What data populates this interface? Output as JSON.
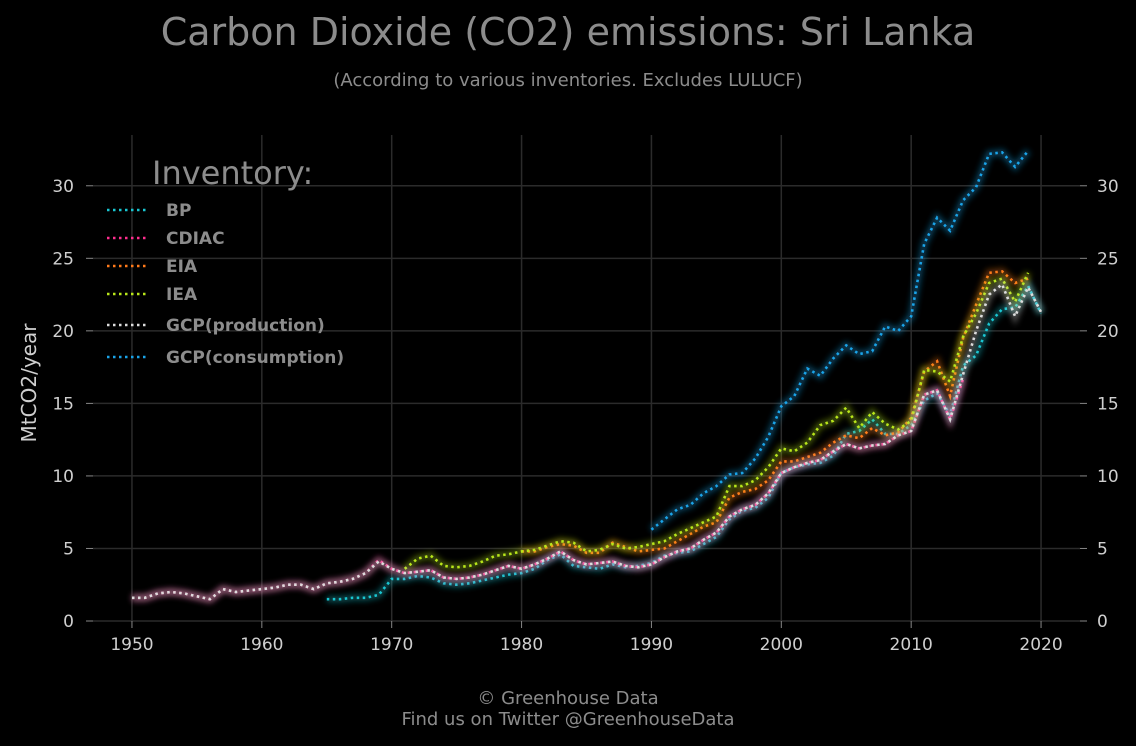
{
  "chart_data": {
    "type": "line",
    "title": "Carbon Dioxide (CO2) emissions: Sri Lanka",
    "subtitle": "(According to various inventories. Excludes LULUCF)",
    "xlabel": "",
    "ylabel": "MtCO2/year",
    "xlim": [
      1947,
      2023
    ],
    "ylim": [
      0,
      33.5
    ],
    "xticks": [
      1950,
      1960,
      1970,
      1980,
      1990,
      2000,
      2010,
      2020
    ],
    "yticks": [
      0,
      5,
      10,
      15,
      20,
      25,
      30
    ],
    "grid": true,
    "legend_title": "Inventory:",
    "legend_position": "top-left",
    "series": [
      {
        "name": "BP",
        "color": "#19c6d2",
        "x": [
          1965,
          1966,
          1967,
          1968,
          1969,
          1970,
          1971,
          1972,
          1973,
          1974,
          1975,
          1976,
          1977,
          1978,
          1979,
          1980,
          1981,
          1982,
          1983,
          1984,
          1985,
          1986,
          1987,
          1988,
          1989,
          1990,
          1991,
          1992,
          1993,
          1994,
          1995,
          1996,
          1997,
          1998,
          1999,
          2000,
          2001,
          2002,
          2003,
          2004,
          2005,
          2006,
          2007,
          2008,
          2009,
          2010,
          2011,
          2012,
          2013,
          2014,
          2015,
          2016,
          2017,
          2018,
          2019,
          2020
        ],
        "y": [
          1.5,
          1.5,
          1.6,
          1.6,
          1.8,
          2.9,
          2.9,
          3.1,
          3.0,
          2.6,
          2.5,
          2.6,
          2.8,
          3.0,
          3.2,
          3.3,
          3.6,
          4.2,
          4.6,
          3.8,
          3.7,
          3.6,
          3.9,
          3.7,
          3.8,
          4.0,
          4.5,
          4.7,
          4.8,
          5.3,
          5.8,
          7.0,
          7.6,
          7.8,
          8.5,
          10.2,
          10.6,
          10.8,
          10.9,
          11.4,
          12.9,
          13.1,
          13.9,
          12.9,
          12.9,
          13.5,
          15.2,
          15.7,
          14.2,
          17.6,
          18.3,
          20.5,
          21.5,
          21.6,
          23.1,
          21.2
        ]
      },
      {
        "name": "CDIAC",
        "color": "#ff2e8f",
        "x": [
          1950,
          1951,
          1952,
          1953,
          1954,
          1955,
          1956,
          1957,
          1958,
          1959,
          1960,
          1961,
          1962,
          1963,
          1964,
          1965,
          1966,
          1967,
          1968,
          1969,
          1970,
          1971,
          1972,
          1973,
          1974,
          1975,
          1976,
          1977,
          1978,
          1979,
          1980,
          1981,
          1982,
          1983,
          1984,
          1985,
          1986,
          1987,
          1988,
          1989,
          1990,
          1991,
          1992,
          1993,
          1994,
          1995,
          1996,
          1997,
          1998,
          1999,
          2000,
          2001,
          2002,
          2003,
          2004,
          2005,
          2006,
          2007,
          2008,
          2009,
          2010,
          2011,
          2012,
          2013,
          2014
        ],
        "y": [
          1.6,
          1.6,
          1.9,
          2.0,
          1.9,
          1.7,
          1.5,
          2.2,
          2.0,
          2.1,
          2.2,
          2.3,
          2.5,
          2.5,
          2.2,
          2.6,
          2.7,
          2.9,
          3.3,
          4.2,
          3.6,
          3.3,
          3.4,
          3.5,
          3.0,
          2.9,
          3.0,
          3.2,
          3.5,
          3.8,
          3.6,
          3.9,
          4.3,
          4.8,
          4.2,
          3.9,
          4.0,
          4.1,
          3.8,
          3.7,
          3.9,
          4.4,
          4.8,
          5.0,
          5.6,
          6.1,
          7.2,
          7.7,
          8.0,
          8.8,
          10.2,
          10.6,
          10.9,
          11.1,
          11.7,
          12.2,
          11.9,
          12.1,
          12.2,
          12.8,
          13.1,
          15.6,
          15.9,
          13.9,
          16.7
        ]
      },
      {
        "name": "EIA",
        "color": "#ff7a1a",
        "x": [
          1980,
          1981,
          1982,
          1983,
          1984,
          1985,
          1986,
          1987,
          1988,
          1989,
          1990,
          1991,
          1992,
          1993,
          1994,
          1995,
          1996,
          1997,
          1998,
          1999,
          2000,
          2001,
          2002,
          2003,
          2004,
          2005,
          2006,
          2007,
          2008,
          2009,
          2010,
          2011,
          2012,
          2013,
          2014,
          2015,
          2016,
          2017,
          2018,
          2019
        ],
        "y": [
          4.8,
          4.8,
          5.1,
          5.3,
          5.2,
          4.7,
          4.7,
          5.4,
          5.1,
          4.8,
          4.9,
          5.0,
          5.5,
          6.0,
          6.5,
          6.8,
          8.5,
          8.9,
          9.1,
          9.7,
          11.0,
          11.0,
          11.3,
          11.6,
          12.3,
          12.8,
          12.6,
          13.3,
          12.8,
          13.0,
          14.0,
          17.2,
          17.9,
          15.5,
          19.5,
          21.8,
          24.0,
          24.1,
          23.3,
          23.6
        ]
      },
      {
        "name": "IEA",
        "color": "#b8e61a",
        "x": [
          1971,
          1972,
          1973,
          1974,
          1975,
          1976,
          1977,
          1978,
          1979,
          1980,
          1981,
          1982,
          1983,
          1984,
          1985,
          1986,
          1987,
          1988,
          1989,
          1990,
          1991,
          1992,
          1993,
          1994,
          1995,
          1996,
          1997,
          1998,
          1999,
          2000,
          2001,
          2002,
          2003,
          2004,
          2005,
          2006,
          2007,
          2008,
          2009,
          2010,
          2011,
          2012,
          2013,
          2014,
          2015,
          2016,
          2017,
          2018,
          2019
        ],
        "y": [
          3.6,
          4.3,
          4.5,
          3.8,
          3.7,
          3.8,
          4.1,
          4.5,
          4.6,
          4.8,
          4.9,
          5.2,
          5.5,
          5.4,
          4.8,
          4.9,
          5.3,
          5.0,
          5.1,
          5.3,
          5.5,
          6.0,
          6.4,
          6.8,
          7.2,
          9.3,
          9.3,
          9.7,
          10.6,
          11.9,
          11.7,
          12.3,
          13.5,
          13.8,
          14.7,
          13.3,
          14.4,
          13.6,
          13.2,
          13.8,
          17.3,
          17.2,
          16.5,
          19.6,
          21.2,
          23.3,
          23.6,
          22.0,
          24.0
        ]
      },
      {
        "name": "GCP(production)",
        "color": "#dcdcdc",
        "x": [
          1950,
          1951,
          1952,
          1953,
          1954,
          1955,
          1956,
          1957,
          1958,
          1959,
          1960,
          1961,
          1962,
          1963,
          1964,
          1965,
          1966,
          1967,
          1968,
          1969,
          1970,
          1971,
          1972,
          1973,
          1974,
          1975,
          1976,
          1977,
          1978,
          1979,
          1980,
          1981,
          1982,
          1983,
          1984,
          1985,
          1986,
          1987,
          1988,
          1989,
          1990,
          1991,
          1992,
          1993,
          1994,
          1995,
          1996,
          1997,
          1998,
          1999,
          2000,
          2001,
          2002,
          2003,
          2004,
          2005,
          2006,
          2007,
          2008,
          2009,
          2010,
          2011,
          2012,
          2013,
          2014,
          2015,
          2016,
          2017,
          2018,
          2019,
          2020
        ],
        "y": [
          1.6,
          1.6,
          1.9,
          2.0,
          1.9,
          1.7,
          1.5,
          2.2,
          2.0,
          2.1,
          2.2,
          2.3,
          2.5,
          2.5,
          2.2,
          2.6,
          2.7,
          2.9,
          3.3,
          4.1,
          3.6,
          3.3,
          3.4,
          3.5,
          3.0,
          2.9,
          3.0,
          3.2,
          3.5,
          3.8,
          3.6,
          3.9,
          4.3,
          4.8,
          4.2,
          3.9,
          4.0,
          4.1,
          3.8,
          3.7,
          3.9,
          4.4,
          4.8,
          5.0,
          5.6,
          6.1,
          7.2,
          7.7,
          8.0,
          8.8,
          10.2,
          10.6,
          10.9,
          11.1,
          11.7,
          12.2,
          11.9,
          12.1,
          12.2,
          12.8,
          13.1,
          15.6,
          15.9,
          13.9,
          17.0,
          20.0,
          22.5,
          23.2,
          21.0,
          23.0,
          21.3
        ]
      },
      {
        "name": "GCP(consumption)",
        "color": "#1aa3e8",
        "x": [
          1990,
          1991,
          1992,
          1993,
          1994,
          1995,
          1996,
          1997,
          1998,
          1999,
          2000,
          2001,
          2002,
          2003,
          2004,
          2005,
          2006,
          2007,
          2008,
          2009,
          2010,
          2011,
          2012,
          2013,
          2014,
          2015,
          2016,
          2017,
          2018,
          2019
        ],
        "y": [
          6.3,
          7.0,
          7.7,
          8.0,
          8.8,
          9.3,
          10.1,
          10.2,
          11.2,
          12.7,
          14.8,
          15.5,
          17.4,
          16.9,
          18.1,
          19.0,
          18.4,
          18.6,
          20.3,
          20.0,
          21.0,
          26.0,
          27.8,
          26.9,
          29.0,
          29.9,
          32.2,
          32.3,
          31.3,
          32.4
        ]
      }
    ]
  },
  "footer": {
    "line1": "© Greenhouse Data",
    "line2": "Find us on Twitter @GreenhouseData"
  }
}
